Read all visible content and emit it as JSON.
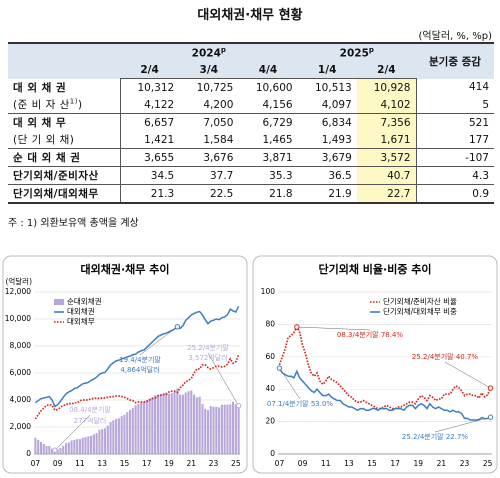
{
  "title": "대외채권·채무 현황",
  "unit": "(억달러, %, %p)",
  "table": {
    "year_headers": [
      {
        "text": "2024",
        "sup": "p"
      },
      {
        "text": "2025",
        "sup": "p"
      }
    ],
    "change_header": "분기중 증감",
    "quarters": [
      "2/4",
      "3/4",
      "4/4",
      "1/4",
      "2/4"
    ],
    "rows": [
      {
        "label": "대 외 채 권",
        "values": [
          "10,312",
          "10,725",
          "10,600",
          "10,513",
          "10,928"
        ],
        "change": "414"
      },
      {
        "label": "(준 비 자 산",
        "label_sup": "1)",
        "label_end": ")",
        "values": [
          "4,122",
          "4,200",
          "4,156",
          "4,097",
          "4,102"
        ],
        "change": "5"
      },
      {
        "label": "대 외 채 무",
        "values": [
          "6,657",
          "7,050",
          "6,729",
          "6,834",
          "7,356"
        ],
        "change": "521"
      },
      {
        "label": "(단 기 외 채)",
        "values": [
          "1,421",
          "1,584",
          "1,465",
          "1,493",
          "1,671"
        ],
        "change": "177"
      },
      {
        "label": "순 대 외 채 권",
        "values": [
          "3,655",
          "3,676",
          "3,871",
          "3,679",
          "3,572"
        ],
        "change": "-107"
      },
      {
        "label": "단기외채/준비자산",
        "values": [
          "34.5",
          "37.7",
          "35.3",
          "36.5",
          "40.7"
        ],
        "change": "4.3"
      },
      {
        "label": "단기외채/대외채무",
        "values": [
          "21.3",
          "22.5",
          "21.8",
          "21.9",
          "22.7"
        ],
        "change": "0.9"
      }
    ]
  },
  "note": "주 : 1) 외환보유액 총액을 계상",
  "chart_data": [
    {
      "type": "combo",
      "title": "대외채권·채무 추이",
      "y_label": "(억달러)",
      "grid": true,
      "legend": "top-left",
      "categories": [
        "07",
        null,
        null,
        null,
        null,
        null,
        null,
        null,
        "09",
        null,
        null,
        null,
        null,
        null,
        null,
        null,
        "11",
        null,
        null,
        null,
        null,
        null,
        null,
        null,
        "13",
        null,
        null,
        null,
        null,
        null,
        null,
        null,
        "15",
        null,
        null,
        null,
        null,
        null,
        null,
        null,
        "17",
        null,
        null,
        null,
        null,
        null,
        null,
        null,
        "19",
        null,
        null,
        null,
        null,
        null,
        null,
        null,
        "21",
        null,
        null,
        null,
        null,
        null,
        null,
        null,
        "23",
        null,
        null,
        null,
        null,
        null,
        null,
        null,
        "25",
        null
      ],
      "ylim": [
        0,
        12000
      ],
      "yticks": [
        0,
        {
          "value": 2000,
          "label": "2,000"
        },
        {
          "value": 4000,
          "label": "4,000"
        },
        {
          "value": 6000,
          "label": "6,000"
        },
        {
          "value": 8000,
          "label": "8,000"
        },
        {
          "value": 10000,
          "label": "10,000"
        },
        {
          "value": 12000,
          "label": "12,000"
        }
      ],
      "series": [
        {
          "name": "순대외채권",
          "type": "bar",
          "color": "#b8a8da",
          "values": [
            1200,
            1050,
            900,
            750,
            600,
            600,
            400,
            277,
            350,
            450,
            600,
            800,
            850,
            1000,
            1050,
            1100,
            1100,
            1200,
            1250,
            1300,
            1350,
            1450,
            1550,
            1800,
            1850,
            1900,
            2100,
            2370,
            2500,
            2600,
            2650,
            2800,
            2900,
            3100,
            3250,
            3400,
            3600,
            3700,
            3800,
            3850,
            4000,
            4100,
            4200,
            4350,
            4400,
            4450,
            4500,
            4550,
            4450,
            4500,
            4600,
            4864,
            4400,
            4400,
            4550,
            4650,
            4700,
            4400,
            4200,
            4250,
            3700,
            3350,
            3250,
            3550,
            3500,
            3500,
            3450,
            3650,
            3650,
            3655,
            3675,
            3871,
            3679,
            3572
          ]
        },
        {
          "name": "대외채권",
          "type": "line",
          "color": "#3b7dc4",
          "values": [
            3800,
            3950,
            4100,
            4150,
            4200,
            4250,
            4000,
            3520,
            3650,
            3900,
            4200,
            4450,
            4600,
            4700,
            4850,
            4900,
            5050,
            5200,
            5250,
            5300,
            5450,
            5550,
            5700,
            5900,
            6000,
            6050,
            6300,
            6600,
            6750,
            6900,
            6950,
            7050,
            7100,
            7200,
            7250,
            7350,
            7400,
            7550,
            7650,
            7700,
            7900,
            8100,
            8300,
            8500,
            8700,
            8800,
            8900,
            8950,
            9050,
            9150,
            9250,
            9423,
            9300,
            9500,
            9900,
            10100,
            10300,
            10400,
            10500,
            10550,
            10300,
            9950,
            9650,
            9850,
            9900,
            10000,
            9950,
            10100,
            10150,
            10312,
            10725,
            10600,
            10513,
            10928
          ]
        },
        {
          "name": "대외채무",
          "type": "line",
          "dash": true,
          "color": "#d3261c",
          "values": [
            2600,
            2900,
            3200,
            3400,
            3600,
            3650,
            3600,
            3243,
            3300,
            3450,
            3600,
            3650,
            3750,
            3700,
            3800,
            3800,
            3950,
            4000,
            4000,
            4000,
            4100,
            4100,
            4150,
            4100,
            4150,
            4150,
            4200,
            4230,
            4250,
            4300,
            4300,
            4250,
            4200,
            4100,
            4000,
            3950,
            3800,
            3850,
            3850,
            3850,
            3900,
            4000,
            4100,
            4150,
            4300,
            4350,
            4400,
            4400,
            4600,
            4650,
            4650,
            4559,
            4900,
            5100,
            5350,
            5450,
            5600,
            6000,
            6300,
            6300,
            6600,
            6600,
            6400,
            6300,
            6400,
            6500,
            6500,
            6450,
            6500,
            6657,
            7050,
            6729,
            6834,
            7356
          ]
        }
      ],
      "annotations": [
        "08.4/4분기말",
        "277억달러",
        "19.4/4분기말",
        "4,864억달러",
        "25.2/4분기말",
        "3,572억달러"
      ]
    },
    {
      "type": "line",
      "title": "단기외채 비율·비중 추이",
      "grid": true,
      "legend": "top-right",
      "categories": [
        "07",
        null,
        null,
        null,
        null,
        null,
        null,
        null,
        "09",
        null,
        null,
        null,
        null,
        null,
        null,
        null,
        "11",
        null,
        null,
        null,
        null,
        null,
        null,
        null,
        "13",
        null,
        null,
        null,
        null,
        null,
        null,
        null,
        "15",
        null,
        null,
        null,
        null,
        null,
        null,
        null,
        "17",
        null,
        null,
        null,
        null,
        null,
        null,
        null,
        "19",
        null,
        null,
        null,
        null,
        null,
        null,
        null,
        "21",
        null,
        null,
        null,
        null,
        null,
        null,
        null,
        "23",
        null,
        null,
        null,
        null,
        null,
        null,
        null,
        "25",
        null
      ],
      "ylim": [
        0,
        100
      ],
      "yticks": [
        0,
        20,
        40,
        60,
        80,
        100
      ],
      "series": [
        {
          "name": "단기외채/준비자산 비율",
          "dash": true,
          "color": "#d3261c",
          "values": [
            55,
            60,
            65,
            72,
            73,
            75,
            78.4,
            75,
            67,
            62,
            55,
            50,
            48,
            50,
            45,
            43,
            45,
            48,
            46,
            45,
            44,
            42,
            40,
            38,
            36,
            35,
            33,
            32,
            32,
            33,
            32,
            31,
            30,
            29,
            28,
            28,
            29,
            30,
            29,
            28,
            28,
            29,
            29,
            30,
            31,
            32,
            32,
            31,
            34,
            36,
            35,
            33,
            36,
            35,
            33,
            34,
            34,
            37,
            37,
            37,
            40,
            42,
            41,
            39,
            36,
            37,
            37,
            36,
            36,
            34.5,
            37.7,
            35.3,
            36.5,
            40.7
          ]
        },
        {
          "name": "단기외채/대외채무 비중",
          "color": "#3b7dc4",
          "values": [
            53.0,
            50,
            49,
            48,
            48,
            47,
            51,
            47,
            45,
            43,
            41,
            39,
            38,
            40,
            38,
            36,
            36,
            37,
            35,
            34,
            33,
            33,
            31,
            30,
            29,
            29,
            28,
            27,
            28,
            28,
            27,
            27,
            28,
            28,
            27,
            28,
            28,
            28,
            27,
            27,
            28,
            28,
            28,
            27,
            29,
            30,
            30,
            28,
            30,
            31,
            30,
            28,
            31,
            29,
            28,
            29,
            28,
            27,
            27,
            26,
            27,
            26,
            26,
            25,
            22,
            22,
            21,
            21,
            21,
            21.3,
            22.5,
            21.8,
            21.9,
            22.7
          ]
        }
      ],
      "annotations": [
        "08.3/4분기말 78.4%",
        "25.2/4분기말 40.7%",
        "07.1/4분기말 53.0%",
        "25.2/4분기말 22.7%"
      ]
    }
  ]
}
